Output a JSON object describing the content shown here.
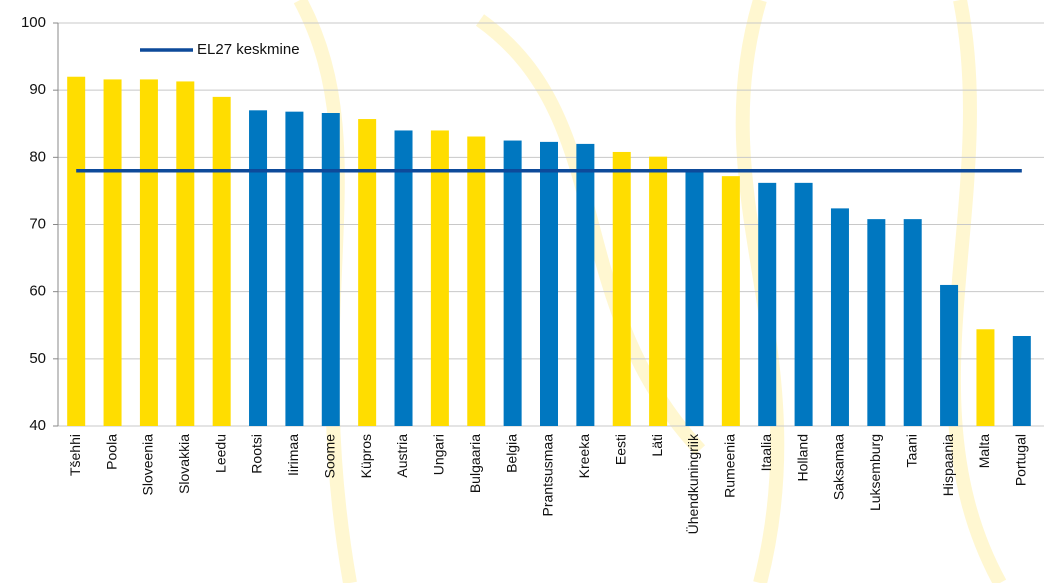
{
  "chart_data": {
    "type": "bar",
    "categories": [
      "Tšehhi",
      "Poola",
      "Sloveenia",
      "Slovakkia",
      "Leedu",
      "Rootsi",
      "Iirimaa",
      "Soome",
      "Küpros",
      "Austria",
      "Ungari",
      "Bulgaaria",
      "Belgia",
      "Prantsusmaa",
      "Kreeka",
      "Eesti",
      "Läti",
      "Ühendkuningriik",
      "Rumeenia",
      "Itaalia",
      "Holland",
      "Saksamaa",
      "Luksemburg",
      "Taani",
      "Hispaania",
      "Malta",
      "Portugal"
    ],
    "values": [
      92,
      91.6,
      91.6,
      91.3,
      89,
      87,
      86.8,
      86.6,
      85.7,
      84,
      84,
      83.1,
      82.5,
      82.3,
      82,
      80.8,
      80.1,
      78.2,
      77.2,
      76.2,
      76.2,
      72.4,
      70.8,
      70.8,
      61,
      54.4,
      53.4
    ],
    "colors": [
      "#ffdd00",
      "#ffdd00",
      "#ffdd00",
      "#ffdd00",
      "#ffdd00",
      "#0077c0",
      "#0077c0",
      "#0077c0",
      "#ffdd00",
      "#0077c0",
      "#ffdd00",
      "#ffdd00",
      "#0077c0",
      "#0077c0",
      "#0077c0",
      "#ffdd00",
      "#ffdd00",
      "#0077c0",
      "#ffdd00",
      "#0077c0",
      "#0077c0",
      "#0077c0",
      "#0077c0",
      "#0077c0",
      "#0077c0",
      "#ffdd00",
      "#0077c0"
    ],
    "reference_line": {
      "name": "EL27 keskmine",
      "value": 78,
      "color": "#0d4a9a"
    },
    "ylim": [
      40,
      100
    ],
    "yticks": [
      40,
      50,
      60,
      70,
      80,
      90,
      100
    ],
    "grid": true
  }
}
